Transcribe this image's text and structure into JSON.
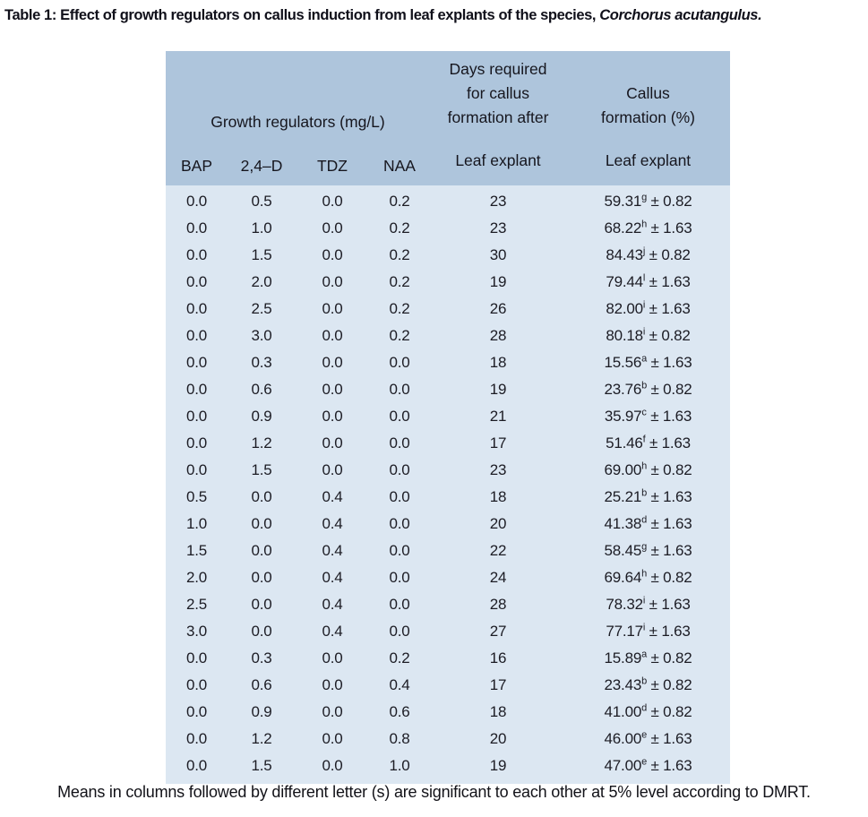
{
  "page": {
    "title_prefix": "Table 1:",
    "title_body": " Effect of growth regulators on callus induction from leaf explants of the species, ",
    "title_species": "Corchorus acutangulus.",
    "footnote": "Means in columns followed by different letter (s) are significant to each other at 5% level according to DMRT."
  },
  "table": {
    "group_header": "Growth regulators (mg/L)",
    "days_header_lines": [
      "Days required",
      "for callus",
      "formation after"
    ],
    "callus_header_lines": [
      "Callus",
      "formation (%)"
    ],
    "sub_headers": [
      "BAP",
      "2,4–D",
      "TDZ",
      "NAA"
    ],
    "days_subheader": "Leaf explant",
    "callus_subheader": "Leaf explant",
    "plus_minus": "±",
    "colors": {
      "header_bg": "#aec5dc",
      "body_bg": "#dce7f2",
      "text": "#1c1c24"
    },
    "columns": [
      "BAP",
      "2,4–D",
      "TDZ",
      "NAA",
      "Days required for callus formation after leaf explant",
      "Callus formation (%) leaf explant"
    ],
    "rows": [
      {
        "bap": "0.0",
        "d24": "0.5",
        "tdz": "0.0",
        "naa": "0.2",
        "days": "23",
        "callus": "59.31",
        "sup": "g",
        "err": "0.82"
      },
      {
        "bap": "0.0",
        "d24": "1.0",
        "tdz": "0.0",
        "naa": "0.2",
        "days": "23",
        "callus": "68.22",
        "sup": "h",
        "err": "1.63"
      },
      {
        "bap": "0.0",
        "d24": "1.5",
        "tdz": "0.0",
        "naa": "0.2",
        "days": "30",
        "callus": "84.43",
        "sup": "j",
        "err": "0.82"
      },
      {
        "bap": "0.0",
        "d24": "2.0",
        "tdz": "0.0",
        "naa": "0.2",
        "days": "19",
        "callus": "79.44",
        "sup": "l",
        "err": "1.63"
      },
      {
        "bap": "0.0",
        "d24": "2.5",
        "tdz": "0.0",
        "naa": "0.2",
        "days": "26",
        "callus": "82.00",
        "sup": "i",
        "err": "1.63"
      },
      {
        "bap": "0.0",
        "d24": "3.0",
        "tdz": "0.0",
        "naa": "0.2",
        "days": "28",
        "callus": "80.18",
        "sup": "i",
        "err": "0.82"
      },
      {
        "bap": "0.0",
        "d24": "0.3",
        "tdz": "0.0",
        "naa": "0.0",
        "days": "18",
        "callus": "15.56",
        "sup": "a",
        "err": "1.63"
      },
      {
        "bap": "0.0",
        "d24": "0.6",
        "tdz": "0.0",
        "naa": "0.0",
        "days": "19",
        "callus": "23.76",
        "sup": "b",
        "err": "0.82"
      },
      {
        "bap": "0.0",
        "d24": "0.9",
        "tdz": "0.0",
        "naa": "0.0",
        "days": "21",
        "callus": "35.97",
        "sup": "c",
        "err": "1.63"
      },
      {
        "bap": "0.0",
        "d24": "1.2",
        "tdz": "0.0",
        "naa": "0.0",
        "days": "17",
        "callus": "51.46",
        "sup": "f",
        "err": "1.63"
      },
      {
        "bap": "0.0",
        "d24": "1.5",
        "tdz": "0.0",
        "naa": "0.0",
        "days": "23",
        "callus": "69.00",
        "sup": "h",
        "err": "0.82"
      },
      {
        "bap": "0.5",
        "d24": "0.0",
        "tdz": "0.4",
        "naa": "0.0",
        "days": "18",
        "callus": "25.21",
        "sup": "b",
        "err": "1.63"
      },
      {
        "bap": "1.0",
        "d24": "0.0",
        "tdz": "0.4",
        "naa": "0.0",
        "days": "20",
        "callus": "41.38",
        "sup": "d",
        "err": "1.63"
      },
      {
        "bap": "1.5",
        "d24": "0.0",
        "tdz": "0.4",
        "naa": "0.0",
        "days": "22",
        "callus": "58.45",
        "sup": "g",
        "err": "1.63"
      },
      {
        "bap": "2.0",
        "d24": "0.0",
        "tdz": "0.4",
        "naa": "0.0",
        "days": "24",
        "callus": "69.64",
        "sup": "h",
        "err": "0.82"
      },
      {
        "bap": "2.5",
        "d24": "0.0",
        "tdz": "0.4",
        "naa": "0.0",
        "days": "28",
        "callus": "78.32",
        "sup": "i",
        "err": "1.63"
      },
      {
        "bap": "3.0",
        "d24": "0.0",
        "tdz": "0.4",
        "naa": "0.0",
        "days": "27",
        "callus": "77.17",
        "sup": "i",
        "err": "1.63"
      },
      {
        "bap": "0.0",
        "d24": "0.3",
        "tdz": "0.0",
        "naa": "0.2",
        "days": "16",
        "callus": "15.89",
        "sup": "a",
        "err": "0.82"
      },
      {
        "bap": "0.0",
        "d24": "0.6",
        "tdz": "0.0",
        "naa": "0.4",
        "days": "17",
        "callus": "23.43",
        "sup": "b",
        "err": "0.82"
      },
      {
        "bap": "0.0",
        "d24": "0.9",
        "tdz": "0.0",
        "naa": "0.6",
        "days": "18",
        "callus": "41.00",
        "sup": "d",
        "err": "0.82"
      },
      {
        "bap": "0.0",
        "d24": "1.2",
        "tdz": "0.0",
        "naa": "0.8",
        "days": "20",
        "callus": "46.00",
        "sup": "e",
        "err": "1.63"
      },
      {
        "bap": "0.0",
        "d24": "1.5",
        "tdz": "0.0",
        "naa": "1.0",
        "days": "19",
        "callus": "47.00",
        "sup": "e",
        "err": "1.63"
      }
    ]
  }
}
